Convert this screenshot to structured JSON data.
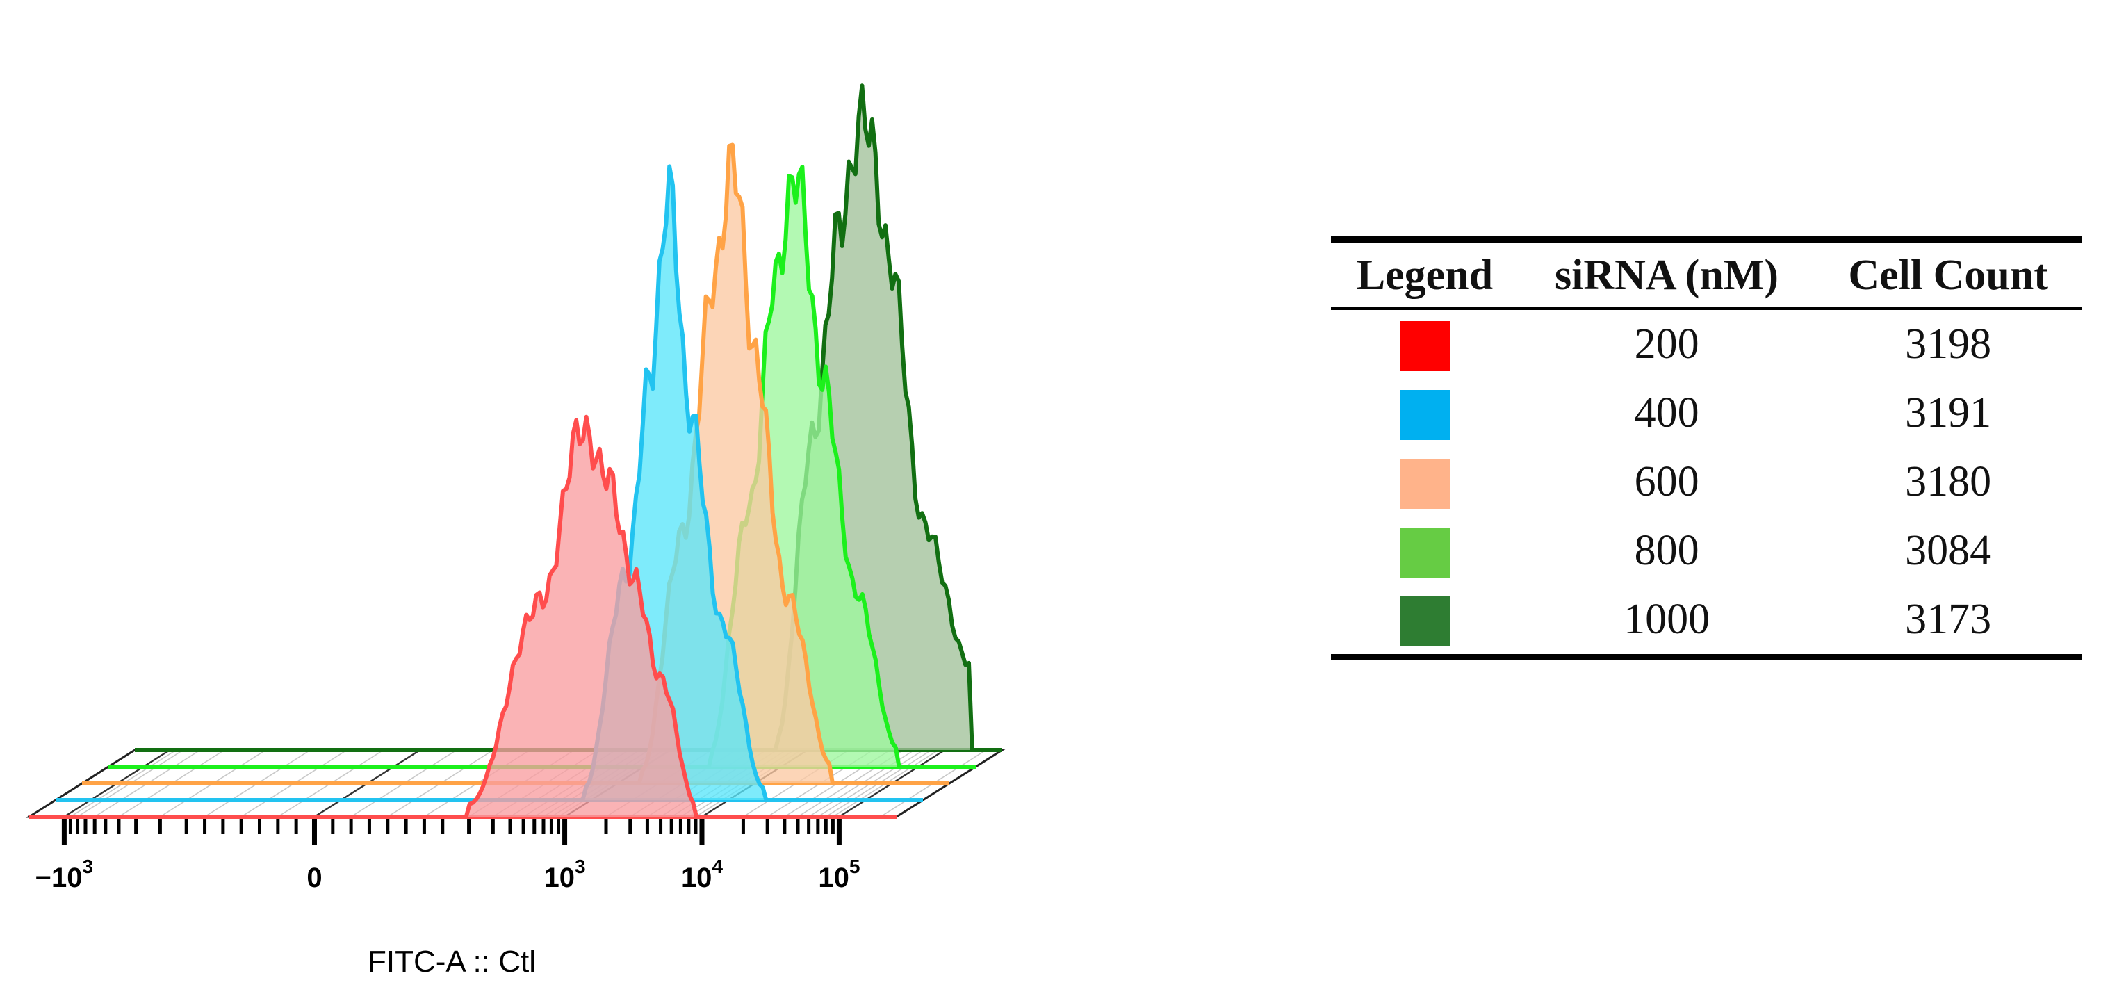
{
  "chart_data": {
    "type": "area",
    "xlabel": "FITC-A :: Ctl",
    "x_scale": "biexponential",
    "x_tick_labels": [
      {
        "value": -1000,
        "base": "−10",
        "exp": "3"
      },
      {
        "value": 0,
        "base": "0",
        "exp": ""
      },
      {
        "value": 1000,
        "base": "10",
        "exp": "3"
      },
      {
        "value": 10000,
        "base": "10",
        "exp": "4"
      },
      {
        "value": 100000,
        "base": "10",
        "exp": "5"
      }
    ],
    "series": [
      {
        "name": "200",
        "color": "#ff0000",
        "line_color": "#ff4d4d",
        "fill_color": "#f89ea0",
        "cell_count": 3198,
        "x": [
          200,
          700,
          1300,
          2000,
          3200,
          5000,
          9000
        ],
        "density": [
          0.02,
          0.35,
          0.62,
          0.55,
          0.38,
          0.22,
          0.02
        ]
      },
      {
        "name": "400",
        "color": "#00b0f0",
        "line_color": "#22c3f0",
        "fill_color": "#5ae6fa",
        "cell_count": 3191,
        "x": [
          900,
          1800,
          2700,
          3700,
          5200,
          9000,
          18000
        ],
        "density": [
          0.02,
          0.36,
          0.68,
          0.98,
          0.62,
          0.28,
          0.02
        ]
      },
      {
        "name": "600",
        "color": "#ffb38a",
        "line_color": "#ffa346",
        "fill_color": "#fbc9a3",
        "cell_count": 3180,
        "x": [
          1500,
          3000,
          5000,
          7000,
          10000,
          17000,
          36000
        ],
        "density": [
          0.02,
          0.4,
          0.8,
          1.0,
          0.68,
          0.3,
          0.03
        ]
      },
      {
        "name": "800",
        "color": "#66cc44",
        "line_color": "#1cf01c",
        "fill_color": "#9ef79e",
        "cell_count": 3084,
        "x": [
          3000,
          6000,
          9000,
          13000,
          20000,
          35000,
          70000
        ],
        "density": [
          0.02,
          0.42,
          0.78,
          0.95,
          0.62,
          0.28,
          0.03
        ]
      },
      {
        "name": "1000",
        "color": "#2e7d32",
        "line_color": "#126f12",
        "fill_color": "#a2c29a",
        "cell_count": 3173,
        "x": [
          6000,
          11000,
          17000,
          26000,
          40000,
          70000,
          150000
        ],
        "density": [
          0.02,
          0.5,
          0.84,
          1.02,
          0.78,
          0.36,
          0.14
        ]
      }
    ]
  },
  "legend_table": {
    "headers": [
      "Legend",
      "siRNA (nM)",
      "Cell Count"
    ],
    "rows": [
      {
        "color": "#ff0000",
        "sirna": "200",
        "count": "3198"
      },
      {
        "color": "#00b0f0",
        "sirna": "400",
        "count": "3191"
      },
      {
        "color": "#ffb38a",
        "sirna": "600",
        "count": "3180"
      },
      {
        "color": "#66cc44",
        "sirna": "800",
        "count": "3084"
      },
      {
        "color": "#2e7d32",
        "sirna": "1000",
        "count": "3173"
      }
    ]
  }
}
